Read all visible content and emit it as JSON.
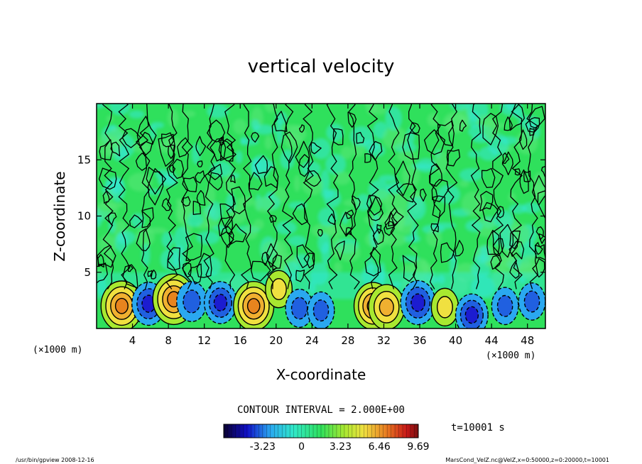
{
  "chart_data": {
    "type": "heatmap",
    "title": "vertical velocity",
    "xlabel": "X-coordinate",
    "ylabel": "Z-coordinate",
    "x_unit_left": "(×1000 m)",
    "x_unit_right": "(×1000 m)",
    "xlim": [
      0,
      50
    ],
    "ylim": [
      0,
      20
    ],
    "x_ticks": [
      4,
      8,
      12,
      16,
      20,
      24,
      28,
      32,
      36,
      40,
      44,
      48
    ],
    "y_ticks": [
      5,
      10,
      15
    ],
    "contour_interval_text": "CONTOUR INTERVAL = 2.000E+00",
    "time_text": "t=10001 s",
    "colorbar": {
      "range": [
        -6.46,
        9.69
      ],
      "tick_labels": [
        "-3.23",
        "0",
        "3.23",
        "6.46",
        "9.69"
      ],
      "tick_values": [
        -3.23,
        0,
        3.23,
        6.46,
        9.69
      ]
    },
    "cells": [
      {
        "x": 2.8,
        "z": 2.0,
        "w": 9.5
      },
      {
        "x": 5.8,
        "z": 2.2,
        "w": -6.0
      },
      {
        "x": 8.6,
        "z": 2.6,
        "w": 9.7
      },
      {
        "x": 10.6,
        "z": 2.4,
        "w": -4.5
      },
      {
        "x": 13.8,
        "z": 2.3,
        "w": -5.5
      },
      {
        "x": 17.5,
        "z": 2.0,
        "w": 9.0
      },
      {
        "x": 20.3,
        "z": 3.5,
        "w": 3.0
      },
      {
        "x": 22.6,
        "z": 1.8,
        "w": -3.5
      },
      {
        "x": 25.0,
        "z": 1.6,
        "w": -3.0
      },
      {
        "x": 30.8,
        "z": 2.0,
        "w": 8.0
      },
      {
        "x": 32.3,
        "z": 1.9,
        "w": 7.0
      },
      {
        "x": 35.8,
        "z": 2.3,
        "w": -6.5
      },
      {
        "x": 38.8,
        "z": 1.9,
        "w": 3.2
      },
      {
        "x": 41.8,
        "z": 1.2,
        "w": -5.5
      },
      {
        "x": 45.5,
        "z": 2.0,
        "w": -3.0
      },
      {
        "x": 48.5,
        "z": 2.4,
        "w": -3.0
      }
    ]
  },
  "footer": {
    "left": "/usr/bin/gpview   2008-12-16",
    "right": "MarsCond_VelZ.nc@VelZ,x=0:50000,z=0:20000,t=10001"
  },
  "colors": {
    "background": "#ffffff",
    "field_green": "#2fe05c",
    "field_cyan": "#34e8d6",
    "updraft_core": "#e8841e",
    "downdraft_core": "#1c1cd0"
  }
}
